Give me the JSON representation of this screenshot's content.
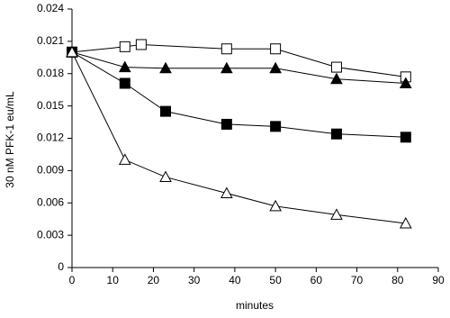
{
  "chart_data": {
    "type": "line",
    "xlabel": "minutes",
    "ylabel": "30 nM PFK-1 eu/mL",
    "xlim": [
      0,
      90
    ],
    "xticks": [
      0,
      10,
      20,
      30,
      40,
      50,
      60,
      70,
      80,
      90
    ],
    "ylim": [
      0,
      0.024
    ],
    "yticks": [
      0,
      0.003,
      0.006,
      0.009,
      0.012,
      0.015,
      0.018,
      0.021,
      0.024
    ],
    "grid": false,
    "series": [
      {
        "color": "#000000",
        "marker": "square",
        "filled": false,
        "x": [
          0,
          13,
          17,
          38,
          50,
          65,
          82
        ],
        "values": [
          0.02,
          0.0205,
          0.0207,
          0.0203,
          0.0203,
          0.0186,
          0.0177
        ]
      },
      {
        "color": "#000000",
        "marker": "triangle",
        "filled": true,
        "x": [
          0,
          13,
          23,
          38,
          50,
          65,
          82
        ],
        "values": [
          0.02,
          0.0186,
          0.0185,
          0.0185,
          0.0185,
          0.0175,
          0.0171
        ]
      },
      {
        "color": "#000000",
        "marker": "square",
        "filled": true,
        "x": [
          0,
          13,
          23,
          38,
          50,
          65,
          82
        ],
        "values": [
          0.02,
          0.0171,
          0.0145,
          0.0133,
          0.0131,
          0.0124,
          0.0121
        ]
      },
      {
        "color": "#000000",
        "marker": "triangle",
        "filled": false,
        "x": [
          0,
          13,
          23,
          38,
          50,
          65,
          82
        ],
        "values": [
          0.02,
          0.01,
          0.0084,
          0.0069,
          0.0057,
          0.0049,
          0.0041
        ]
      }
    ]
  }
}
